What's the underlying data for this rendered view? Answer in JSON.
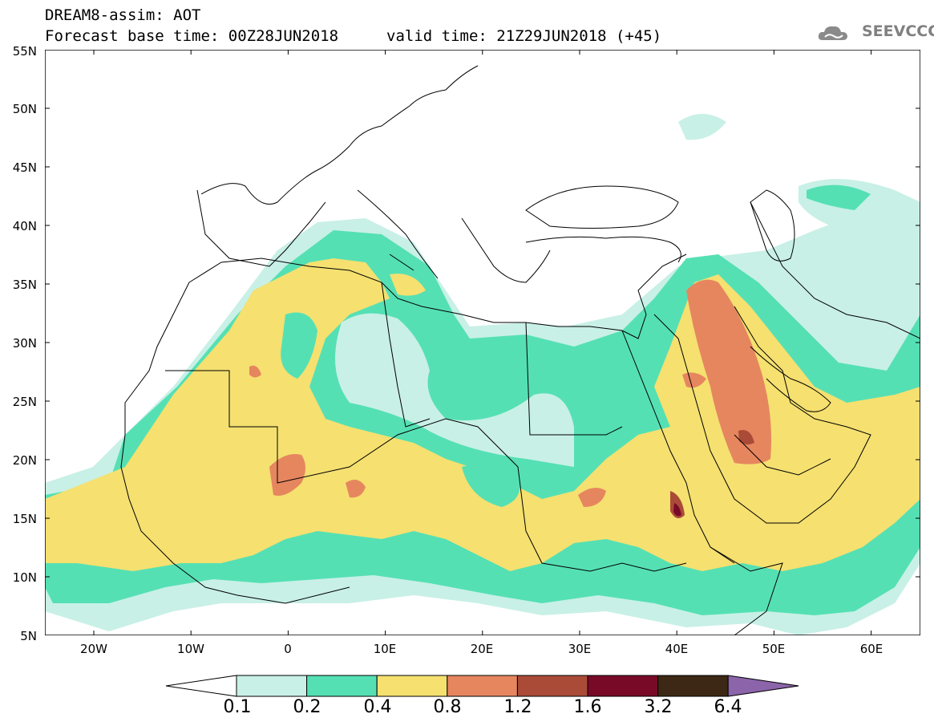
{
  "title": {
    "line1": "DREAM8-assim: AOT",
    "line2": "Forecast base time: 00Z28JUN2018",
    "valid": "valid time: 21Z29JUN2018 (+45)"
  },
  "logo": {
    "text": "SEEVCCC",
    "icon": "cloud-icon"
  },
  "axes": {
    "lat_labels": [
      "55N",
      "50N",
      "45N",
      "40N",
      "35N",
      "30N",
      "25N",
      "20N",
      "15N",
      "10N",
      "5N"
    ],
    "lon_labels": [
      "20W",
      "10W",
      "0",
      "10E",
      "20E",
      "30E",
      "40E",
      "50E",
      "60E"
    ]
  },
  "colorbar": {
    "labels": [
      "0.1",
      "0.2",
      "0.4",
      "0.8",
      "1.2",
      "1.6",
      "3.2",
      "6.4"
    ],
    "colors": [
      "#c8f0e6",
      "#55e0b4",
      "#f5e070",
      "#e6865f",
      "#aa4b38",
      "#780a28",
      "#3c2814",
      "#8c64aa"
    ]
  }
}
